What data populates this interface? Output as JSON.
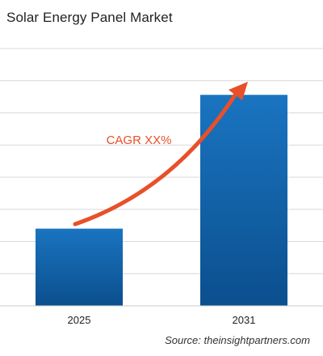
{
  "title": "Solar Energy Panel Market",
  "source": "Source: theinsightpartners.com",
  "annotation": "CAGR XX%",
  "colors": {
    "bar_top": "#1a74c0",
    "bar_bottom": "#0b4f8e",
    "arrow": "#e8502a",
    "annotation": "#e8502a",
    "grid": "#d9d9d9"
  },
  "chart_data": {
    "type": "bar",
    "categories": [
      "2025",
      "2031"
    ],
    "values": [
      30,
      82
    ],
    "ylim": [
      0,
      100
    ],
    "grid": true,
    "xlabel": "",
    "ylabel": ""
  }
}
